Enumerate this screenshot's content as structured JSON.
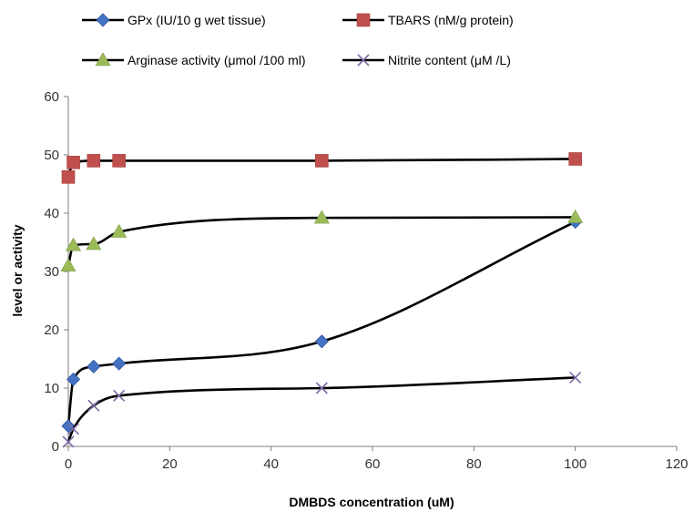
{
  "chart_data": {
    "type": "line",
    "title": "",
    "xlabel": "DMBDS concentration (uM)",
    "ylabel": "level or activity",
    "xlim": [
      0,
      120
    ],
    "ylim": [
      0,
      60
    ],
    "xticks": [
      "0",
      "20",
      "40",
      "60",
      "80",
      "100",
      "120"
    ],
    "yticks": [
      "0",
      "10",
      "20",
      "30",
      "40",
      "50",
      "60"
    ],
    "grid": false,
    "legend_position": "top",
    "x": [
      0,
      1,
      5,
      10,
      50,
      100
    ],
    "series": [
      {
        "name": "GPx (IU/10 g wet tissue)",
        "marker": "diamond",
        "color": "#4472c4",
        "values": [
          3.5,
          11.5,
          13.7,
          14.2,
          18,
          38.5
        ]
      },
      {
        "name": "TBARS (nM/g protein)",
        "marker": "square",
        "color": "#c0504d",
        "values": [
          46.2,
          48.7,
          49,
          49,
          49,
          49.3
        ]
      },
      {
        "name": "Arginase activity (μmol /100 ml)",
        "marker": "triangle",
        "color": "#9bbb59",
        "values": [
          31,
          34.5,
          34.7,
          36.8,
          39.2,
          39.3
        ]
      },
      {
        "name": "Nitrite content (μM /L)",
        "marker": "x",
        "color": "#7f6aa6",
        "values": [
          0.8,
          3,
          7,
          8.7,
          10,
          11.8
        ]
      }
    ]
  }
}
